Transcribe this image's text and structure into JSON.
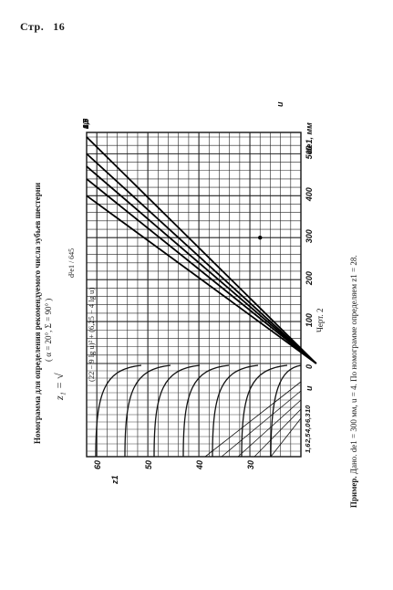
{
  "page": {
    "label": "Стр.",
    "number": "16"
  },
  "title": {
    "text": "Номограмма для определения рекомендуемого числа зубьев шестерни",
    "params": "( α = 20°,  Σ = 90° )"
  },
  "formula": {
    "left": "z₁ = √",
    "denominator": "(22 − 9 lg u)² + (6,25 − 4 lg u)",
    "numerator": "d²e1 / 645"
  },
  "figure_caption": "Черт. 2",
  "example": {
    "label": "Пример.",
    "text": "Дано. de1 = 300 мм, u = 4. По номограмме определяем z1 = 28."
  },
  "chart_data": {
    "type": "line",
    "description_axes": {
      "x_axis_label": "de1, мм",
      "x_ticks": [
        "0",
        "100",
        "200",
        "300",
        "400",
        "500"
      ],
      "x_range": [
        0,
        540
      ],
      "y_axis_label": "z1",
      "y_ticks": [
        "30",
        "40",
        "50",
        "60"
      ],
      "y_range": [
        20,
        62
      ],
      "u_axis_label": "u",
      "u_ticks_bottom": [
        "1,6",
        "2,5",
        "4,0",
        "6,3",
        "10"
      ],
      "grid": true
    },
    "u_values": [
      1.6,
      2.5,
      4.0,
      6.3,
      10
    ],
    "u_labels": [
      "1,6",
      "2,5",
      "4,0",
      "6,3",
      "10"
    ],
    "series": [
      {
        "name": "1,6",
        "x": [
          0,
          540
        ],
        "y": [
          17,
          62
        ]
      },
      {
        "name": "2,5",
        "x": [
          0,
          500
        ],
        "y": [
          17,
          62
        ]
      },
      {
        "name": "4,0",
        "x": [
          0,
          470
        ],
        "y": [
          17,
          62
        ]
      },
      {
        "name": "6,3",
        "x": [
          0,
          440
        ],
        "y": [
          17,
          62
        ]
      },
      {
        "name": "10",
        "x": [
          0,
          400
        ],
        "y": [
          17,
          62
        ]
      }
    ],
    "example_point": {
      "de1": 300,
      "u": 4,
      "z1": 28
    }
  }
}
